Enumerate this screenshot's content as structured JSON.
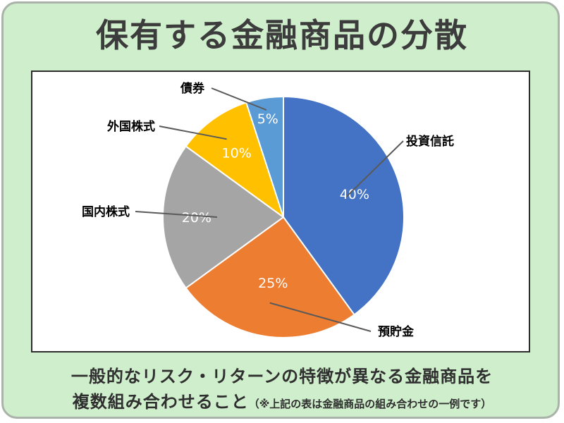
{
  "title": "保有する金融商品の分散",
  "caption": {
    "line1": "一般的なリスク・リターンの特徴が異なる金融商品を",
    "line2_main": "複数組み合わせること",
    "line2_note": "（※上記の表は金融商品の組み合わせの一例です）"
  },
  "chart_data": {
    "type": "pie",
    "title": "",
    "slices": [
      {
        "category": "投資信託",
        "value": 40,
        "label": "40%",
        "color": "#4472c4"
      },
      {
        "category": "預貯金",
        "value": 25,
        "label": "25%",
        "color": "#ed7d31"
      },
      {
        "category": "国内株式",
        "value": 20,
        "label": "20%",
        "color": "#a5a5a5"
      },
      {
        "category": "外国株式",
        "value": 10,
        "label": "10%",
        "color": "#ffc000"
      },
      {
        "category": "債券",
        "value": 5,
        "label": "5%",
        "color": "#5b9bd5"
      }
    ],
    "start": "12 o'clock",
    "direction": "clockwise",
    "legend": "none (category labels with leader lines)"
  }
}
